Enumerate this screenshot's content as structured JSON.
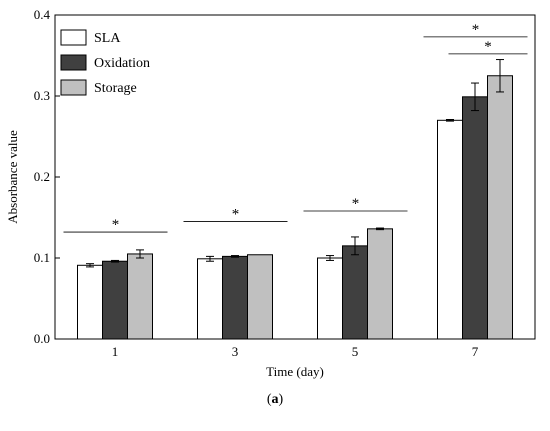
{
  "chart_data": {
    "type": "bar",
    "categories": [
      "1",
      "3",
      "5",
      "7"
    ],
    "series": [
      {
        "name": "SLA",
        "values": [
          0.091,
          0.099,
          0.1,
          0.27
        ],
        "errors": [
          0.002,
          0.003,
          0.003,
          0.001
        ],
        "color": "#ffffff"
      },
      {
        "name": "Oxidation",
        "values": [
          0.096,
          0.102,
          0.115,
          0.299
        ],
        "errors": [
          0.001,
          0.001,
          0.011,
          0.017
        ],
        "color": "#404040"
      },
      {
        "name": "Storage",
        "values": [
          0.105,
          0.104,
          0.136,
          0.325
        ],
        "errors": [
          0.005,
          0.0,
          0.001,
          0.02
        ],
        "color": "#c0c0c0"
      }
    ],
    "xlabel": "Time (day)",
    "ylabel": "Absorbance value",
    "ylim": [
      0,
      0.4
    ],
    "yticks": [
      "0.0",
      "0.1",
      "0.2",
      "0.3",
      "0.4"
    ],
    "legend_position": "top-left",
    "grid": false,
    "annotations": [
      {
        "text": "*",
        "category": "1",
        "from_series": "SLA",
        "to_series": "Storage",
        "y": 0.132
      },
      {
        "text": "*",
        "category": "3",
        "from_series": "SLA",
        "to_series": "Storage",
        "y": 0.145
      },
      {
        "text": "*",
        "category": "5",
        "from_series": "SLA",
        "to_series": "Storage",
        "y": 0.158
      },
      {
        "text": "*",
        "category": "7",
        "from_series": "SLA",
        "to_series": "Storage",
        "y": 0.373
      },
      {
        "text": "*",
        "category": "7",
        "from_series": "Oxidation",
        "to_series": "Storage",
        "y": 0.352
      }
    ]
  },
  "caption": {
    "open": "(",
    "letter": "a",
    "close": ")"
  }
}
